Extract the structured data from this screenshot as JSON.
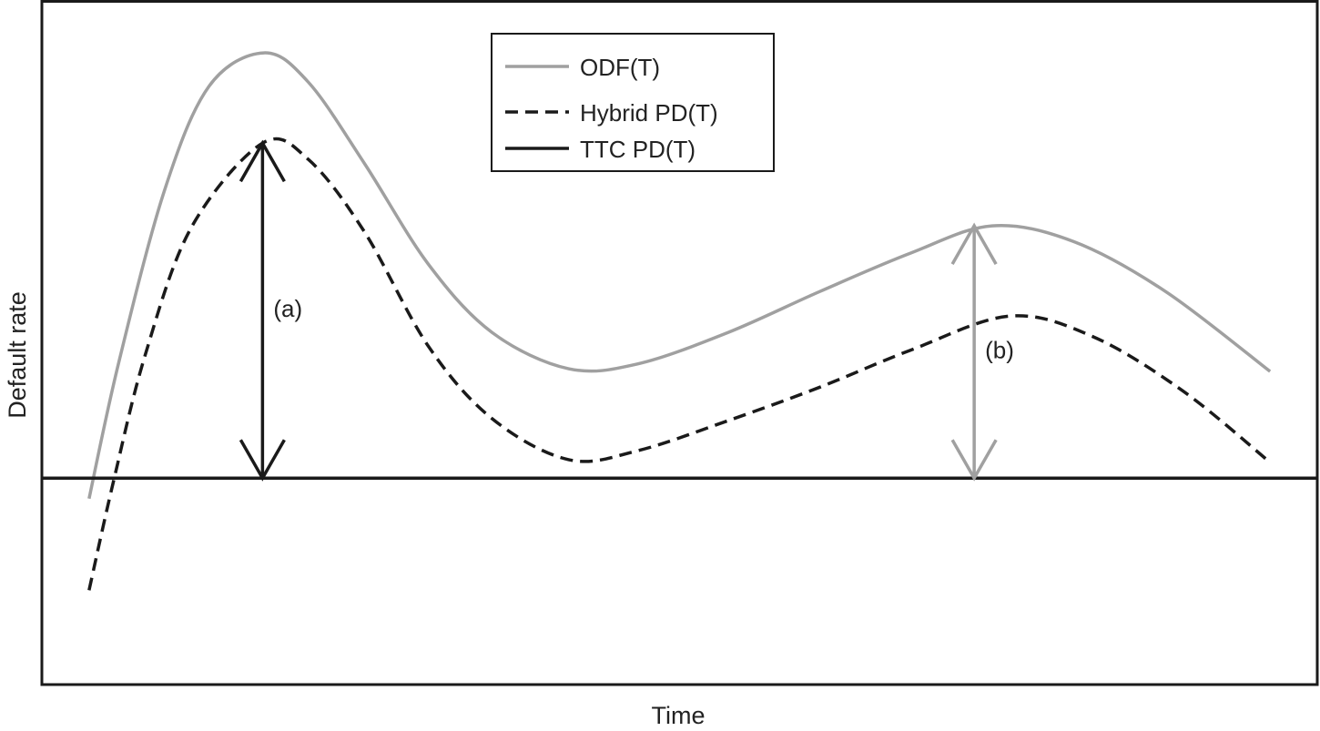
{
  "chart_data": {
    "type": "line",
    "title": "",
    "xlabel": "Time",
    "ylabel": "Default rate",
    "xlim": [
      0,
      100
    ],
    "ylim": [
      0,
      100
    ],
    "grid": false,
    "legend_position": "top-center",
    "series": [
      {
        "name": "ODF(T)",
        "style": "solid",
        "color": "#a0a0a0",
        "x": [
          3.7,
          6.0,
          9.6,
          13.1,
          17.4,
          20.9,
          25.3,
          30.3,
          35.3,
          41.3,
          46.7,
          53.8,
          61.0,
          68.1,
          74.5,
          80.9,
          88.1,
          96.3
        ],
        "y": [
          27.2,
          46.9,
          72.2,
          87.5,
          92.4,
          88.1,
          76.2,
          61.5,
          51.5,
          46.2,
          46.9,
          51.5,
          57.5,
          63.1,
          67.1,
          64.8,
          57.5,
          45.8
        ]
      },
      {
        "name": "Hybrid PD(T)",
        "style": "dashed",
        "color": "#1a1a1a",
        "x": [
          3.7,
          5.6,
          8.1,
          11.7,
          17.3,
          20.9,
          25.3,
          30.3,
          35.3,
          41.3,
          46.7,
          53.8,
          61.0,
          68.1,
          75.9,
          82.4,
          89.5,
          96.3
        ],
        "y": [
          13.8,
          29.6,
          48.2,
          66.8,
          79.2,
          76.8,
          66.2,
          49.5,
          38.9,
          32.9,
          34.2,
          38.6,
          43.5,
          48.9,
          53.9,
          50.9,
          42.9,
          32.5
        ]
      },
      {
        "name": "TTC PD(T)",
        "style": "solid",
        "color": "#1a1a1a",
        "x": [
          0,
          100
        ],
        "y": [
          30.2,
          30.2
        ]
      }
    ],
    "annotations": [
      {
        "label": "(a)",
        "x": 17.3,
        "y_from": 30.2,
        "y_to": 79.2,
        "color": "#1a1a1a"
      },
      {
        "label": "(b)",
        "x": 73.1,
        "y_from": 30.2,
        "y_to": 67.1,
        "color": "#a0a0a0"
      }
    ]
  }
}
